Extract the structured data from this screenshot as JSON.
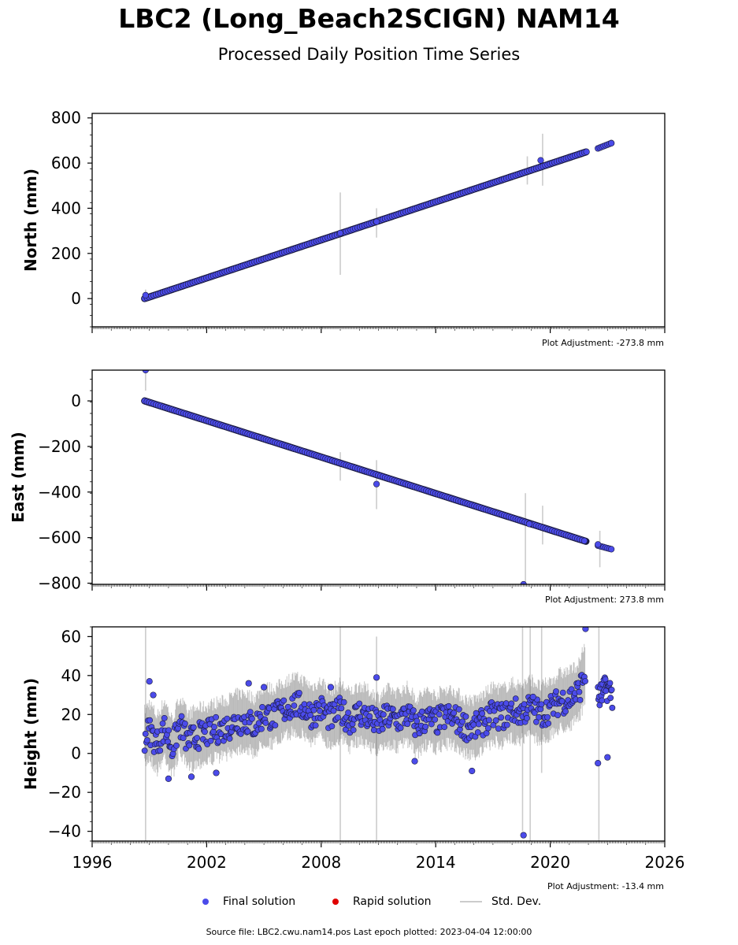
{
  "title": "LBC2 (Long_Beach2SCIGN) NAM14",
  "subtitle": "Processed Daily Position Time Series",
  "source_text": "Source file: LBC2.cwu.nam14.pos  Last epoch plotted: 2023-04-04 12:00:00",
  "legend": [
    {
      "label": "Final solution",
      "color": "#4b4bea"
    },
    {
      "label": "Rapid solution",
      "color": "#e00000"
    },
    {
      "label": "Std. Dev.",
      "color": "#cccccc"
    }
  ],
  "x_axis": {
    "range": [
      1996,
      2026
    ],
    "ticks": [
      "1996",
      "2002",
      "2008",
      "2014",
      "2020",
      "2026"
    ]
  },
  "chart_data": [
    {
      "type": "scatter",
      "ylabel": "North (mm)",
      "adjustment": "Plot Adjustment: -273.8 mm",
      "ylim": [
        -125,
        820
      ],
      "yticks": [
        "800",
        "600",
        "400",
        "200",
        "0"
      ],
      "trend": {
        "x": [
          1998.75,
          2021.9,
          2022.5,
          2023.25
        ],
        "y": [
          0,
          650,
          665,
          690
        ]
      },
      "outliers": {
        "x": [
          1998.8,
          2009.0,
          2010.9,
          2019.5,
          2021.9,
          2023.2
        ],
        "y": [
          15,
          290,
          340,
          612,
          650,
          688
        ]
      },
      "error_bars": {
        "x": [
          1998.8,
          2009.0,
          2010.9,
          2018.8,
          2019.6
        ],
        "low": [
          -10,
          105,
          270,
          505,
          500
        ],
        "high": [
          40,
          470,
          400,
          630,
          730
        ]
      }
    },
    {
      "type": "scatter",
      "ylabel": "East (mm)",
      "adjustment": "Plot Adjustment: 273.8 mm",
      "ylim": [
        -805,
        135
      ],
      "yticks": [
        "0",
        "−200",
        "−400",
        "−600",
        "−800"
      ],
      "trend": {
        "x": [
          1998.75,
          2021.9,
          2022.5,
          2023.25
        ],
        "y": [
          0,
          -617,
          -635,
          -652
        ]
      },
      "outliers": {
        "x": [
          1998.8,
          2010.9,
          2018.6,
          2018.9,
          2022.5
        ],
        "y": [
          135,
          -365,
          -805,
          -540,
          -630
        ]
      },
      "error_bars": {
        "x": [
          1998.8,
          2009.0,
          2010.9,
          2018.7,
          2019.6,
          2022.6
        ],
        "low": [
          45,
          -350,
          -475,
          -800,
          -630,
          -730
        ],
        "high": [
          135,
          -225,
          -260,
          -405,
          -460,
          -570
        ]
      }
    },
    {
      "type": "scatter",
      "ylabel": "Height (mm)",
      "adjustment": "Plot Adjustment: -13.4 mm",
      "ylim": [
        -45,
        65
      ],
      "yticks": [
        "60",
        "40",
        "20",
        "0",
        "−20",
        "−40"
      ],
      "series_x": [
        1998.75,
        1999.0,
        1999.4,
        1999.8,
        2000.2,
        2000.6,
        2001.0,
        2001.5,
        2002.0,
        2002.5,
        2003.0,
        2003.5,
        2004.0,
        2004.5,
        2005.0,
        2005.5,
        2006.0,
        2006.5,
        2007.0,
        2007.5,
        2008.0,
        2008.5,
        2009.0,
        2009.5,
        2010.0,
        2010.5,
        2011.0,
        2011.5,
        2012.0,
        2012.5,
        2013.0,
        2013.5,
        2014.0,
        2014.5,
        2015.0,
        2015.5,
        2016.0,
        2016.5,
        2017.0,
        2017.5,
        2018.0,
        2018.5,
        2019.0,
        2019.5,
        2020.0,
        2020.5,
        2021.0,
        2021.5,
        2021.85
      ],
      "series_y": [
        8,
        12,
        5,
        13,
        3,
        15,
        6,
        9,
        10,
        12,
        13,
        16,
        17,
        14,
        20,
        19,
        22,
        25,
        24,
        20,
        23,
        18,
        22,
        17,
        21,
        18,
        15,
        19,
        17,
        20,
        14,
        18,
        16,
        19,
        18,
        14,
        13,
        16,
        20,
        19,
        22,
        21,
        24,
        20,
        23,
        27,
        28,
        32,
        42
      ],
      "band": 7,
      "late": {
        "x": [
          2022.5,
          2023.0,
          2023.25
        ],
        "y": [
          28,
          34,
          30
        ]
      },
      "outliers": {
        "x": [
          1999.0,
          1999.2,
          2000.0,
          2001.2,
          2002.5,
          2004.2,
          2005.0,
          2008.5,
          2010.9,
          2012.9,
          2015.9,
          2018.6,
          2019.1,
          2021.85,
          2022.5,
          2023.0
        ],
        "y": [
          37,
          30,
          -13,
          -12,
          -10,
          36,
          34,
          34,
          39,
          -4,
          -9,
          -42,
          29,
          64,
          -5,
          -2
        ]
      },
      "error_bars": {
        "x": [
          1998.8,
          2009.0,
          2010.9,
          2018.55,
          2018.95,
          2019.55,
          2022.55
        ],
        "low": [
          -45,
          -45,
          -45,
          -40,
          -45,
          -10,
          -45
        ],
        "high": [
          65,
          65,
          60,
          65,
          65,
          65,
          65
        ]
      }
    }
  ]
}
